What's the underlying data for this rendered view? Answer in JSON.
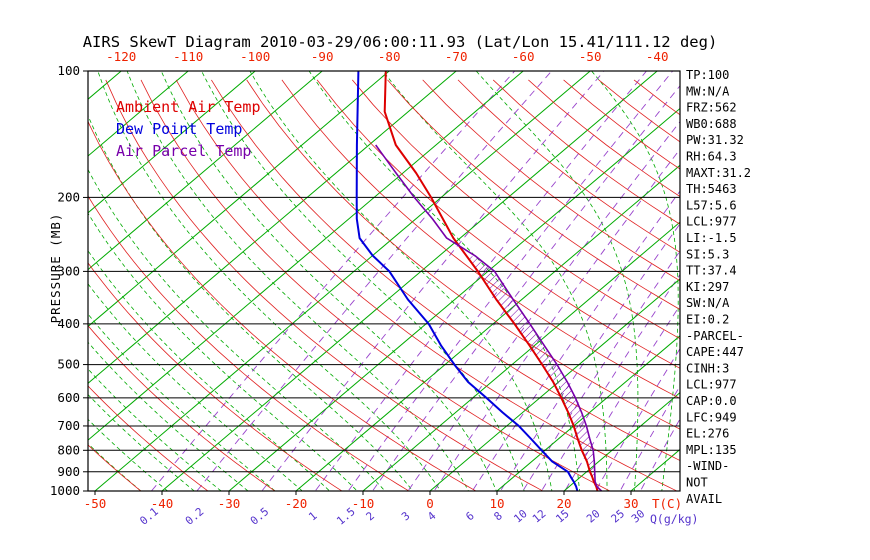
{
  "title": "AIRS SkewT Diagram 2010-03-29/06:00:11.93 (Lat/Lon 15.41/111.12 deg)",
  "colors": {
    "isotherm": "#00aa00",
    "moist_adiabat": "#00aa00",
    "dry_adiabat": "#e02020",
    "mixing_ratio": "#9944cc",
    "tick_label_red": "#ee2200",
    "mixing_label": "#5533cc",
    "pressure_line": "#000000",
    "hatch": "#7700aa"
  },
  "legend": [
    {
      "label": "Ambient Air Temp",
      "color": "#dd0000"
    },
    {
      "label": "Dew Point Temp",
      "color": "#0000dd"
    },
    {
      "label": "Air Parcel Temp",
      "color": "#7700aa"
    }
  ],
  "stats": [
    "TP:100",
    "MW:N/A",
    "FRZ:562",
    "WB0:688",
    "PW:31.32",
    "RH:64.3",
    "MAXT:31.2",
    "TH:5463",
    "L57:5.6",
    "LCL:977",
    "LI:-1.5",
    "SI:5.3",
    "TT:37.4",
    "KI:297",
    "SW:N/A",
    "EI:0.2",
    "-PARCEL-",
    "CAPE:447",
    "CINH:3",
    "LCL:977",
    "CAP:0.0",
    "LFC:949",
    "EL:276",
    "MPL:135",
    "-WIND-",
    "NOT",
    "AVAIL"
  ],
  "chart_data": {
    "type": "line",
    "projection": "skew-t-log-p",
    "y_axis": {
      "label": "PRESSURE (MB)",
      "scale": "log",
      "range": [
        100,
        1000
      ],
      "ticks": [
        100,
        200,
        300,
        400,
        500,
        600,
        700,
        800,
        900,
        1000
      ]
    },
    "x_axis": {
      "unit_label": "T(C)",
      "ticks_top": [
        -120,
        -110,
        -100,
        -90,
        -80,
        -70,
        -60,
        -50,
        -40
      ],
      "ticks_bottom": [
        -50,
        -40,
        -30,
        -20,
        -10,
        0,
        10,
        20,
        30
      ]
    },
    "secondary_axis": {
      "unit_label": "Q(g/kg)",
      "ticks": [
        0.1,
        0.2,
        0.5,
        1,
        1.5,
        2,
        3,
        4,
        6,
        8,
        10,
        12,
        15,
        20,
        25,
        30
      ]
    },
    "grid": {
      "isotherms": {
        "min": -160,
        "max": 40,
        "step": 10
      },
      "dry_adiabats_K": {
        "min": 230,
        "max": 440,
        "step": 10
      },
      "moist_adiabats": {
        "min": -40,
        "max": 40,
        "step": 4
      },
      "mixing_ratios": [
        0.1,
        0.2,
        0.5,
        1,
        1.5,
        2,
        3,
        4,
        6,
        8,
        10,
        12,
        15,
        20,
        25,
        30
      ]
    },
    "series": [
      {
        "name": "Ambient Air Temp",
        "color": "#dd0000",
        "points": [
          [
            1000,
            25.0
          ],
          [
            975,
            24.0
          ],
          [
            950,
            22.8
          ],
          [
            925,
            21.7
          ],
          [
            900,
            20.5
          ],
          [
            850,
            18.2
          ],
          [
            800,
            15.5
          ],
          [
            750,
            12.8
          ],
          [
            700,
            10.0
          ],
          [
            650,
            6.8
          ],
          [
            600,
            3.2
          ],
          [
            550,
            -0.8
          ],
          [
            500,
            -5.5
          ],
          [
            450,
            -10.8
          ],
          [
            400,
            -16.8
          ],
          [
            350,
            -23.8
          ],
          [
            300,
            -31.5
          ],
          [
            250,
            -41.0
          ],
          [
            200,
            -51.5
          ],
          [
            175,
            -58.0
          ],
          [
            150,
            -66.0
          ],
          [
            125,
            -73.5
          ],
          [
            100,
            -80.5
          ]
        ]
      },
      {
        "name": "Dew Point Temp",
        "color": "#0000dd",
        "points": [
          [
            1000,
            22.0
          ],
          [
            975,
            21.0
          ],
          [
            950,
            19.8
          ],
          [
            925,
            18.5
          ],
          [
            900,
            17.2
          ],
          [
            850,
            13.0
          ],
          [
            800,
            9.5
          ],
          [
            750,
            5.8
          ],
          [
            700,
            1.8
          ],
          [
            650,
            -3.0
          ],
          [
            600,
            -8.0
          ],
          [
            550,
            -13.5
          ],
          [
            500,
            -18.6
          ],
          [
            450,
            -24.0
          ],
          [
            400,
            -29.6
          ],
          [
            350,
            -37.0
          ],
          [
            300,
            -44.7
          ],
          [
            275,
            -50.0
          ],
          [
            250,
            -55.0
          ],
          [
            225,
            -58.8
          ],
          [
            200,
            -62.6
          ],
          [
            150,
            -71.8
          ],
          [
            100,
            -84.6
          ]
        ]
      },
      {
        "name": "Air Parcel Temp",
        "color": "#7700aa",
        "points": [
          [
            1000,
            25.6
          ],
          [
            977,
            24.2
          ],
          [
            950,
            23.0
          ],
          [
            900,
            21.2
          ],
          [
            850,
            19.3
          ],
          [
            800,
            17.2
          ],
          [
            750,
            14.6
          ],
          [
            700,
            11.9
          ],
          [
            650,
            8.8
          ],
          [
            600,
            5.3
          ],
          [
            550,
            1.3
          ],
          [
            500,
            -3.3
          ],
          [
            450,
            -8.6
          ],
          [
            400,
            -14.5
          ],
          [
            350,
            -21.3
          ],
          [
            300,
            -29.0
          ],
          [
            276,
            -34.5
          ],
          [
            250,
            -42.0
          ],
          [
            225,
            -47.5
          ],
          [
            200,
            -54.0
          ],
          [
            175,
            -61.0
          ],
          [
            150,
            -69.0
          ]
        ]
      }
    ],
    "cape_hatch": {
      "pressure_bottom": 949,
      "pressure_top": 276
    }
  }
}
